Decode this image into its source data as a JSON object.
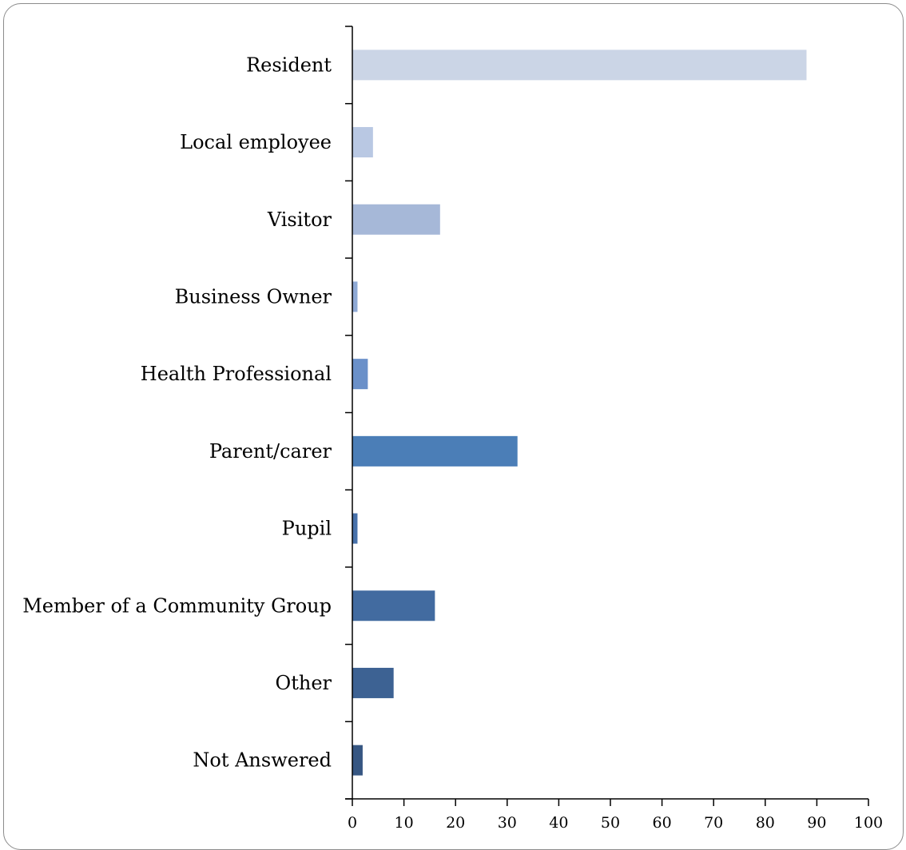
{
  "chart_data": {
    "type": "bar",
    "orientation": "horizontal",
    "categories": [
      "Resident",
      "Local employee",
      "Visitor",
      "Business Owner",
      "Health Professional",
      "Parent/carer",
      "Pupil",
      "Member of a Community Group",
      "Other",
      "Not Answered"
    ],
    "values": [
      88,
      4,
      17,
      1,
      3,
      32,
      1,
      16,
      8,
      2
    ],
    "colors": [
      "#cbd5e6",
      "#b9c8e3",
      "#a6b8d8",
      "#8ea9d5",
      "#6a90c9",
      "#4b7eb7",
      "#4771aa",
      "#426ba0",
      "#3d6293",
      "#365682"
    ],
    "xlim": [
      0,
      100
    ],
    "xticks": [
      "0",
      "10",
      "20",
      "30",
      "40",
      "50",
      "60",
      "70",
      "80",
      "90",
      "100"
    ],
    "title": "",
    "xlabel": "",
    "ylabel": "",
    "grid": false,
    "legend": "none"
  }
}
